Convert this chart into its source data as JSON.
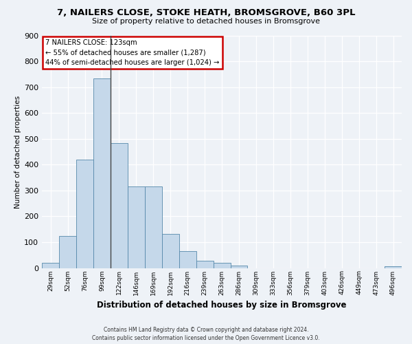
{
  "title": "7, NAILERS CLOSE, STOKE HEATH, BROMSGROVE, B60 3PL",
  "subtitle": "Size of property relative to detached houses in Bromsgrove",
  "xlabel": "Distribution of detached houses by size in Bromsgrove",
  "ylabel": "Number of detached properties",
  "bin_labels": [
    "29sqm",
    "52sqm",
    "76sqm",
    "99sqm",
    "122sqm",
    "146sqm",
    "169sqm",
    "192sqm",
    "216sqm",
    "239sqm",
    "263sqm",
    "286sqm",
    "309sqm",
    "333sqm",
    "356sqm",
    "379sqm",
    "403sqm",
    "426sqm",
    "449sqm",
    "473sqm",
    "496sqm"
  ],
  "bar_values": [
    20,
    125,
    420,
    733,
    482,
    315,
    315,
    133,
    65,
    28,
    20,
    10,
    0,
    0,
    0,
    0,
    0,
    0,
    0,
    0,
    8
  ],
  "bar_color": "#c5d8ea",
  "bar_edge_color": "#5588aa",
  "annotation_title": "7 NAILERS CLOSE: 123sqm",
  "annotation_line1": "← 55% of detached houses are smaller (1,287)",
  "annotation_line2": "44% of semi-detached houses are larger (1,024) →",
  "annotation_box_color": "#ffffff",
  "annotation_box_edge": "#cc0000",
  "vline_x": 3.5,
  "ylim": [
    0,
    900
  ],
  "yticks": [
    0,
    100,
    200,
    300,
    400,
    500,
    600,
    700,
    800,
    900
  ],
  "background_color": "#eef2f7",
  "grid_color": "#ffffff",
  "footer_line1": "Contains HM Land Registry data © Crown copyright and database right 2024.",
  "footer_line2": "Contains public sector information licensed under the Open Government Licence v3.0."
}
